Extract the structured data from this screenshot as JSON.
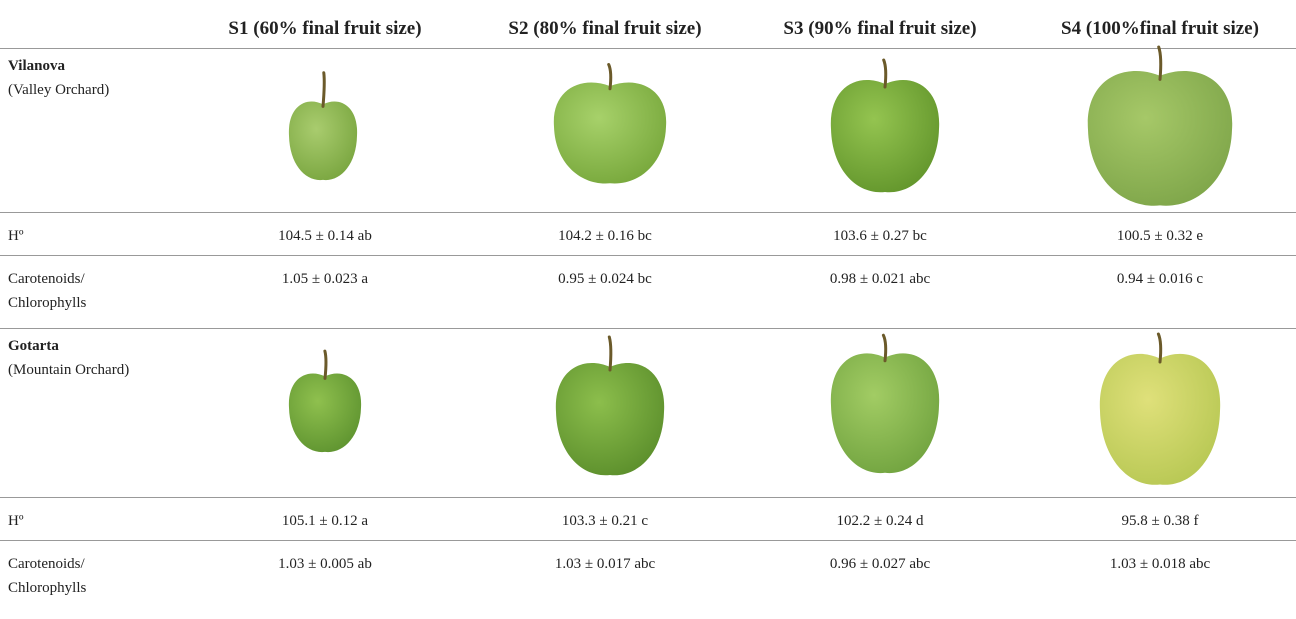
{
  "header": {
    "columns": [
      "S1 (60% final fruit size)",
      "S2 (80% final fruit size)",
      "S3 (90% final fruit size)",
      "S4 (100%final fruit size)"
    ]
  },
  "sites": [
    {
      "name": "Vilanova",
      "orchard": "(Valley Orchard)",
      "rows": [
        {
          "label": [
            "Hº"
          ],
          "values": [
            "104.5 ± 0.14 ab",
            "104.2 ± 0.16 bc",
            "103.6 ± 0.27 bc",
            "100.5 ± 0.32 e"
          ]
        },
        {
          "label": [
            "Carotenoids/",
            "Chlorophylls"
          ],
          "values": [
            "1.05 ± 0.023 a",
            "0.95 ± 0.024 bc",
            "0.98 ± 0.021 abc",
            "0.94 ± 0.016 c"
          ]
        }
      ]
    },
    {
      "name": "Gotarta",
      "orchard": "(Mountain Orchard)",
      "rows": [
        {
          "label": [
            "Hº"
          ],
          "values": [
            "105.1 ± 0.12 a",
            "103.3 ± 0.21 c",
            "102.2 ± 0.24 d",
            "95.8 ± 0.38 f"
          ]
        },
        {
          "label": [
            "Carotenoids/",
            "Chlorophylls"
          ],
          "values": [
            "1.03 ± 0.005 ab",
            "1.03 ± 0.017 abc",
            "0.96 ± 0.027 abc",
            "1.03 ± 0.018 abc"
          ]
        }
      ]
    }
  ]
}
